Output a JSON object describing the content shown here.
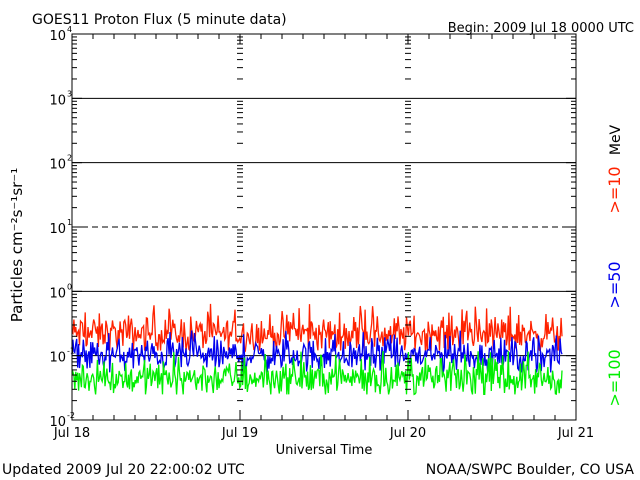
{
  "header": {
    "title": "GOES11 Proton Flux (5 minute data)",
    "begin": "Begin: 2009 Jul 18 0000 UTC"
  },
  "footer": {
    "updated": "Updated 2009 Jul 20 22:00:02 UTC",
    "credit": "NOAA/SWPC Boulder, CO USA"
  },
  "chart_data": {
    "type": "line",
    "title": "GOES11 Proton Flux (5 minute data)",
    "xlabel": "Universal Time",
    "ylabel": "Particles cm⁻²s⁻¹sr⁻¹",
    "yscale": "log",
    "ylim": [
      0.01,
      10000
    ],
    "xlim": [
      "2009-07-18",
      "2009-07-21"
    ],
    "x_ticks": [
      "Jul 18",
      "Jul 19",
      "Jul 20",
      "Jul 21"
    ],
    "y_ticks": [
      {
        "value": 0.01,
        "base": "10",
        "exp": "-2"
      },
      {
        "value": 0.1,
        "base": "10",
        "exp": "-1"
      },
      {
        "value": 1,
        "base": "10",
        "exp": "0"
      },
      {
        "value": 10,
        "base": "10",
        "exp": "1"
      },
      {
        "value": 100,
        "base": "10",
        "exp": "2"
      },
      {
        "value": 1000,
        "base": "10",
        "exp": "3"
      },
      {
        "value": 10000,
        "base": "10",
        "exp": "4"
      }
    ],
    "threshold_lines": [
      {
        "value": 0.1,
        "style": "solid"
      },
      {
        "value": 1,
        "style": "solid"
      },
      {
        "value": 10,
        "style": "dashed"
      },
      {
        "value": 100,
        "style": "solid"
      },
      {
        "value": 1000,
        "style": "solid"
      }
    ],
    "data_end": "2009-07-20 22:00",
    "series": [
      {
        "name": ">=10",
        "color": "#ff2200",
        "typical": 0.22,
        "min": 0.12,
        "max": 0.65
      },
      {
        "name": ">=50",
        "color": "#0000ee",
        "typical": 0.1,
        "min": 0.055,
        "max": 0.25
      },
      {
        "name": ">=100",
        "color": "#00ee00",
        "typical": 0.045,
        "min": 0.025,
        "max": 0.12
      }
    ],
    "legend": {
      "unit": "MeV",
      "placement": "right"
    }
  }
}
